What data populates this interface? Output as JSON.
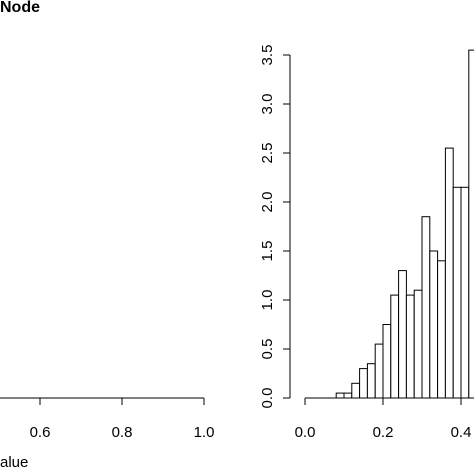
{
  "chart_data": [
    {
      "type": "histogram",
      "title": "Node",
      "x_label": "alue",
      "xlim": [
        0,
        1
      ],
      "xticks": [
        0.6,
        0.8,
        {
          "value": 1,
          "label": "1.0"
        }
      ]
    },
    {
      "type": "histogram",
      "bins": [
        0,
        0.02,
        0.04,
        0.06,
        0.08,
        0.1,
        0.12,
        0.14,
        0.16,
        0.18,
        0.2,
        0.22,
        0.24,
        0.26,
        0.28,
        0.3,
        0.32,
        0.34,
        0.36,
        0.38,
        0.4,
        0.42,
        0.44
      ],
      "counts": [
        0,
        0,
        0,
        0,
        0.05,
        0.05,
        0.15,
        0.3,
        0.35,
        0.55,
        0.75,
        1.05,
        1.3,
        1.05,
        1.1,
        1.85,
        1.5,
        1.4,
        2.55,
        2.15,
        2.15,
        3.55
      ],
      "color": "#ffffff",
      "xlim": [
        0,
        0.4
      ],
      "xticks": [
        {
          "value": 0,
          "label": "0.0"
        },
        0.2,
        0.4
      ],
      "ylim": [
        0,
        3.5
      ],
      "yticks": [
        {
          "value": 0,
          "label": "0.0"
        },
        0.5,
        {
          "value": 1,
          "label": "1.0"
        },
        1.5,
        {
          "value": 2,
          "label": "2.0"
        },
        2.5,
        {
          "value": 3,
          "label": "3.0"
        },
        3.5
      ]
    }
  ]
}
